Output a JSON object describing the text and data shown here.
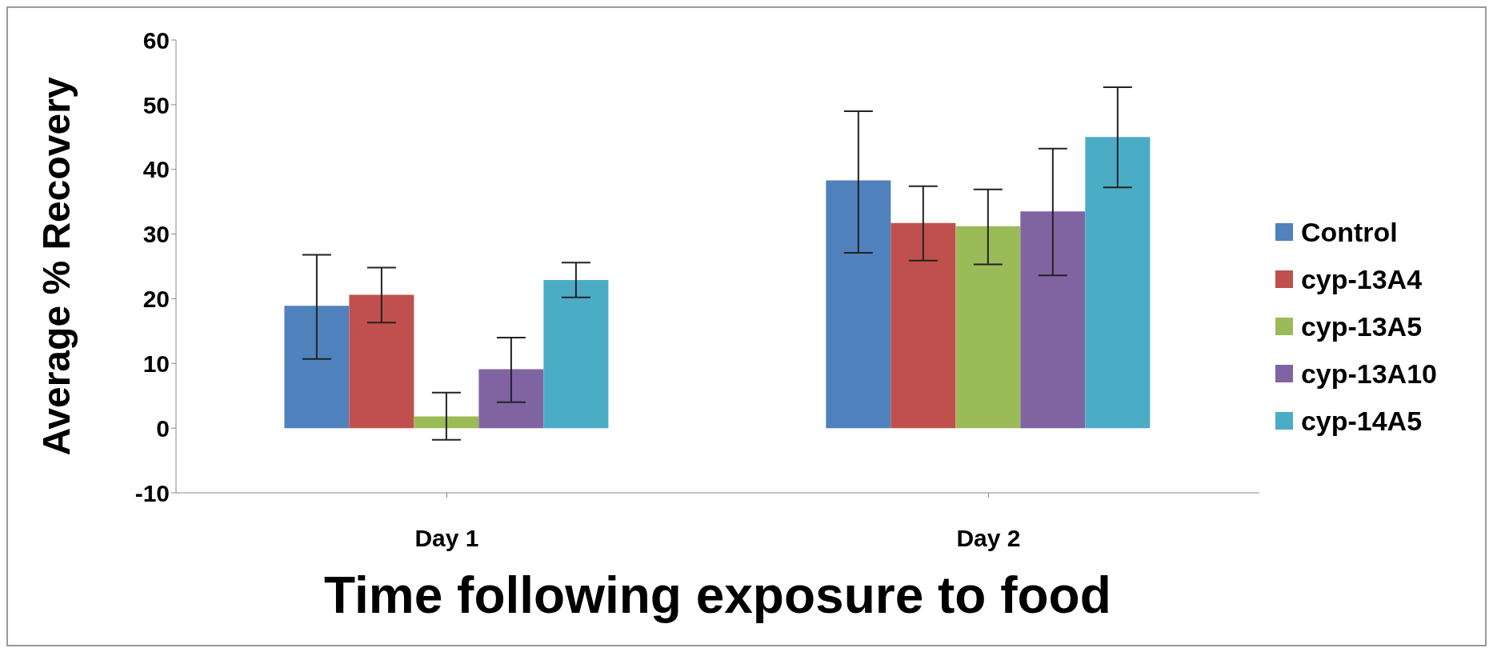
{
  "chart_data": {
    "type": "bar",
    "xlabel": "Time following exposure to food",
    "ylabel": "Average % Recovery",
    "categories": [
      "Day 1",
      "Day 2"
    ],
    "series": [
      {
        "name": "Control",
        "color": "#4f81bd",
        "values": [
          18.9,
          38.3
        ],
        "errors": [
          [
            10.7,
            26.8
          ],
          [
            27.1,
            49.0
          ]
        ]
      },
      {
        "name": "cyp-13A4",
        "color": "#c0504d",
        "values": [
          20.6,
          31.7
        ],
        "errors": [
          [
            16.3,
            24.8
          ],
          [
            25.9,
            37.4
          ]
        ]
      },
      {
        "name": "cyp-13A5",
        "color": "#9bbb59",
        "values": [
          1.8,
          31.2
        ],
        "errors": [
          [
            -1.8,
            5.5
          ],
          [
            25.3,
            36.9
          ]
        ]
      },
      {
        "name": "cyp-13A10",
        "color": "#8064a2",
        "values": [
          9.1,
          33.5
        ],
        "errors": [
          [
            4.0,
            14.0
          ],
          [
            23.6,
            43.2
          ]
        ]
      },
      {
        "name": "cyp-14A5",
        "color": "#4bacc6",
        "values": [
          22.9,
          45.0
        ],
        "errors": [
          [
            20.2,
            25.6
          ],
          [
            37.2,
            52.7
          ]
        ]
      }
    ],
    "ylim": [
      -10,
      60
    ],
    "yticks": [
      -10,
      0,
      10,
      20,
      30,
      40,
      50,
      60
    ],
    "grid": false,
    "legend": "right"
  }
}
